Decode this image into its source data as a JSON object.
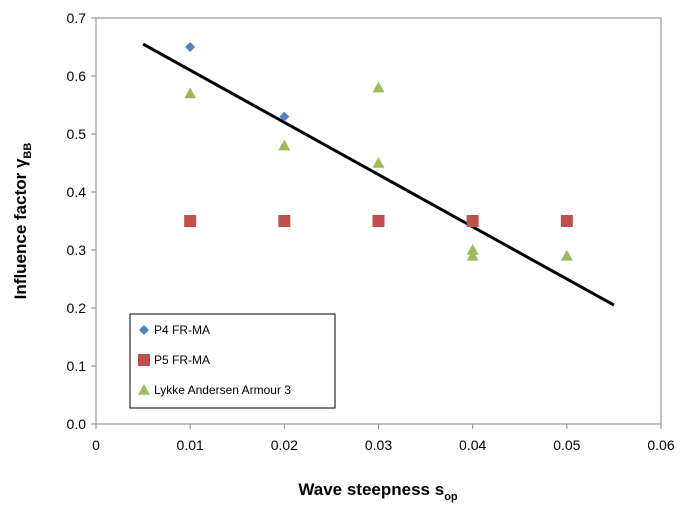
{
  "chart_data": {
    "type": "scatter",
    "xlabel": {
      "main": "Wave steepness s",
      "sub": "op"
    },
    "ylabel": {
      "main": "Influence factor γ",
      "sub": "BB"
    },
    "xlim": [
      0,
      0.06
    ],
    "ylim": [
      0,
      0.7
    ],
    "x_ticks": [
      {
        "value": 0,
        "label": "0"
      },
      {
        "value": 0.01,
        "label": "0.01"
      },
      {
        "value": 0.02,
        "label": "0.02"
      },
      {
        "value": 0.03,
        "label": "0.03"
      },
      {
        "value": 0.04,
        "label": "0.04"
      },
      {
        "value": 0.05,
        "label": "0.05"
      },
      {
        "value": 0.06,
        "label": "0.06"
      }
    ],
    "y_ticks": [
      {
        "value": 0,
        "label": "0.0"
      },
      {
        "value": 0.1,
        "label": "0.1"
      },
      {
        "value": 0.2,
        "label": "0.2"
      },
      {
        "value": 0.3,
        "label": "0.3"
      },
      {
        "value": 0.4,
        "label": "0.4"
      },
      {
        "value": 0.5,
        "label": "0.5"
      },
      {
        "value": 0.6,
        "label": "0.6"
      },
      {
        "value": 0.7,
        "label": "0.7"
      }
    ],
    "grid": false,
    "legend_position": "bottom-left",
    "series": [
      {
        "name": "P4 FR-MA",
        "marker": "diamond",
        "color": "#4f81bd",
        "points": [
          [
            0.01,
            0.65
          ],
          [
            0.02,
            0.53
          ]
        ]
      },
      {
        "name": "P5 FR-MA",
        "marker": "square",
        "color": "#c0504d",
        "points": [
          [
            0.01,
            0.35
          ],
          [
            0.02,
            0.35
          ],
          [
            0.03,
            0.35
          ],
          [
            0.04,
            0.35
          ],
          [
            0.05,
            0.35
          ]
        ]
      },
      {
        "name": "Lykke Andersen Armour 3",
        "marker": "triangle",
        "color": "#9bbb59",
        "points": [
          [
            0.01,
            0.57
          ],
          [
            0.02,
            0.48
          ],
          [
            0.03,
            0.58
          ],
          [
            0.03,
            0.45
          ],
          [
            0.04,
            0.3
          ],
          [
            0.04,
            0.29
          ],
          [
            0.05,
            0.29
          ]
        ]
      }
    ],
    "trend_line": {
      "color": "#000000",
      "points": [
        [
          0.005,
          0.655
        ],
        [
          0.055,
          0.205
        ]
      ]
    }
  }
}
